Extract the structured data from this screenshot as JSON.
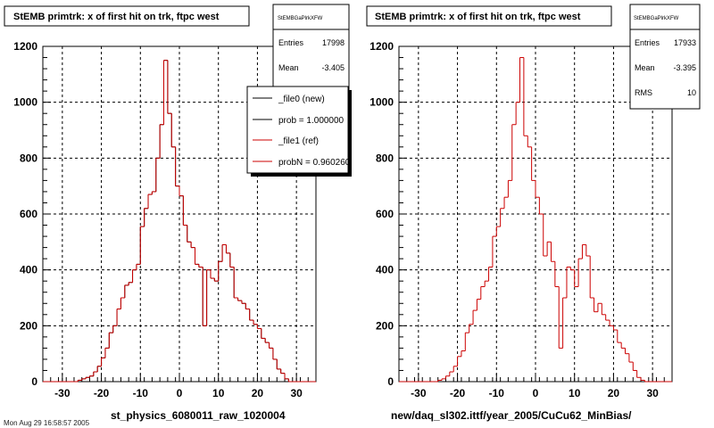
{
  "footer": "Mon Aug 29 16:58:57 2005",
  "chart_data": [
    {
      "type": "histogram",
      "title": "StEMB primtrk: x of first hit on trk, ftpc west",
      "xlabel": "st_physics_6080011_raw_1020004",
      "ylabel": "",
      "xlim": [
        -35,
        35
      ],
      "ylim": [
        0,
        1200
      ],
      "xticks": [
        -30,
        -20,
        -10,
        0,
        10,
        20,
        30
      ],
      "yticks": [
        0,
        200,
        400,
        600,
        800,
        1000,
        1200
      ],
      "grid": true,
      "bin_edges_start": -35,
      "bin_width": 1,
      "series": [
        {
          "name": "_file0 (new)",
          "color": "#000000",
          "values": [
            0,
            0,
            0,
            0,
            0,
            0,
            0,
            0,
            0,
            5,
            10,
            15,
            20,
            35,
            55,
            85,
            120,
            175,
            200,
            260,
            300,
            345,
            355,
            400,
            420,
            555,
            620,
            670,
            680,
            800,
            920,
            1150,
            960,
            840,
            700,
            665,
            560,
            500,
            480,
            420,
            410,
            200,
            400,
            370,
            360,
            430,
            490,
            460,
            410,
            300,
            290,
            280,
            260,
            220,
            205,
            190,
            155,
            140,
            120,
            80,
            45,
            30,
            10,
            0,
            0,
            0,
            0,
            0,
            0,
            0
          ]
        },
        {
          "name": "_file1 (ref)",
          "color": "#cc0000",
          "values": [
            0,
            0,
            0,
            0,
            0,
            0,
            0,
            0,
            0,
            5,
            10,
            15,
            20,
            35,
            55,
            85,
            120,
            175,
            200,
            260,
            300,
            345,
            355,
            400,
            420,
            555,
            620,
            670,
            680,
            800,
            920,
            1150,
            960,
            840,
            700,
            665,
            560,
            500,
            480,
            420,
            410,
            200,
            400,
            370,
            360,
            430,
            490,
            460,
            410,
            300,
            290,
            280,
            260,
            220,
            205,
            190,
            155,
            140,
            120,
            80,
            45,
            30,
            10,
            0,
            0,
            0,
            0,
            0,
            0,
            0
          ]
        }
      ],
      "stats": {
        "name": "StEMBGaPlrkXFW",
        "entries": "17998",
        "mean": "-3.405"
      },
      "legend": [
        {
          "label": "_file0 (new)",
          "color": "#000000"
        },
        {
          "label": "prob = 1.000000",
          "color": "#000000"
        },
        {
          "label": "_file1 (ref)",
          "color": "#cc0000"
        },
        {
          "label": "probN = 0.960260",
          "color": "#cc0000"
        }
      ],
      "legend_position": "top-right"
    },
    {
      "type": "histogram",
      "title": "StEMB primtrk: x of first hit on trk, ftpc west",
      "xlabel": "new/daq_sl302.ittf/year_2005/CuCu62_MinBias/",
      "ylabel": "",
      "xlim": [
        -35,
        35
      ],
      "ylim": [
        0,
        1200
      ],
      "xticks": [
        -30,
        -20,
        -10,
        0,
        10,
        20,
        30
      ],
      "yticks": [
        0,
        200,
        400,
        600,
        800,
        1000,
        1200
      ],
      "grid": true,
      "bin_edges_start": -35,
      "bin_width": 1,
      "series": [
        {
          "name": "",
          "color": "#cc0000",
          "values": [
            0,
            0,
            0,
            0,
            0,
            0,
            0,
            0,
            0,
            0,
            5,
            10,
            20,
            35,
            55,
            90,
            110,
            175,
            205,
            255,
            295,
            340,
            360,
            410,
            520,
            555,
            620,
            660,
            720,
            920,
            1000,
            1160,
            880,
            840,
            720,
            660,
            600,
            450,
            500,
            430,
            340,
            120,
            300,
            410,
            400,
            340,
            440,
            490,
            450,
            300,
            250,
            280,
            240,
            220,
            200,
            185,
            140,
            120,
            100,
            70,
            40,
            15,
            5,
            0,
            0,
            0,
            0,
            0,
            0,
            0
          ]
        }
      ],
      "stats": {
        "name": "StEMBGaPlrkXFW",
        "entries": "17933",
        "mean": "-3.395",
        "rms": "10"
      }
    }
  ]
}
